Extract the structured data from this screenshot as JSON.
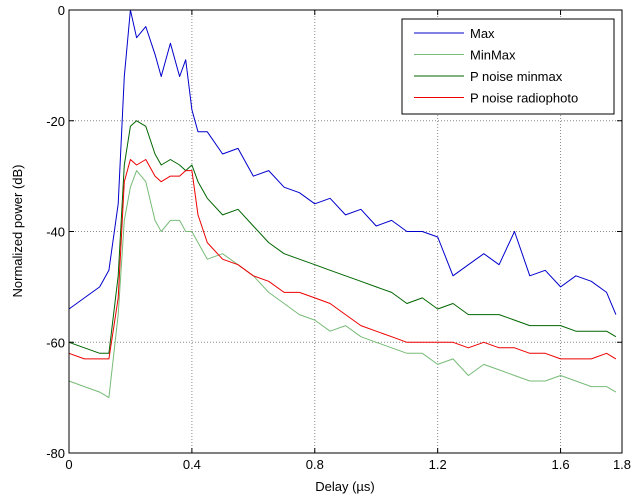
{
  "chart_data": {
    "type": "line",
    "title": "",
    "xlabel": "Delay (µs)",
    "ylabel": "Normalized power (dB)",
    "xlim": [
      0,
      1.8
    ],
    "ylim": [
      -80,
      0
    ],
    "xticks": [
      0,
      0.4,
      0.8,
      1.2,
      1.6,
      1.8
    ],
    "xtick_labels": [
      "0",
      "0.4",
      "0.8",
      "1.2",
      "1.6",
      "1.8"
    ],
    "yticks": [
      0,
      -20,
      -40,
      -60,
      -80
    ],
    "ytick_labels": [
      "0",
      "-20",
      "-40",
      "-60",
      "-80"
    ],
    "grid": true,
    "legend_position": "top-right",
    "x": [
      0,
      0.05,
      0.1,
      0.13,
      0.16,
      0.18,
      0.2,
      0.22,
      0.25,
      0.28,
      0.3,
      0.33,
      0.36,
      0.38,
      0.4,
      0.42,
      0.45,
      0.5,
      0.55,
      0.6,
      0.65,
      0.7,
      0.75,
      0.8,
      0.85,
      0.9,
      0.95,
      1.0,
      1.05,
      1.1,
      1.15,
      1.2,
      1.25,
      1.3,
      1.35,
      1.4,
      1.45,
      1.5,
      1.55,
      1.6,
      1.65,
      1.7,
      1.75,
      1.78
    ],
    "series": [
      {
        "name": "Max",
        "color": "#0000cc",
        "values": [
          -54,
          -52,
          -50,
          -47,
          -35,
          -12,
          0,
          -5,
          -3,
          -8,
          -12,
          -6,
          -12,
          -9,
          -18,
          -22,
          -22,
          -26,
          -25,
          -30,
          -29,
          -32,
          -33,
          -35,
          -34,
          -37,
          -36,
          -39,
          -38,
          -40,
          -40,
          -41,
          -48,
          -46,
          -44,
          -46,
          -40,
          -48,
          -47,
          -50,
          -48,
          -49,
          -51,
          -55
        ]
      },
      {
        "name": "MinMax",
        "color": "#77bb77",
        "values": [
          -67,
          -68,
          -69,
          -70,
          -55,
          -38,
          -32,
          -29,
          -31,
          -38,
          -40,
          -38,
          -38,
          -40,
          -40,
          -42,
          -45,
          -44,
          -46,
          -48,
          -51,
          -53,
          -55,
          -56,
          -58,
          -57,
          -59,
          -60,
          -61,
          -62,
          -62,
          -64,
          -63,
          -66,
          -64,
          -65,
          -66,
          -67,
          -67,
          -66,
          -67,
          -68,
          -68,
          -69
        ]
      },
      {
        "name": "P noise minmax",
        "color": "#006600",
        "values": [
          -60,
          -61,
          -62,
          -62,
          -48,
          -28,
          -21,
          -20,
          -21,
          -26,
          -28,
          -27,
          -28,
          -29,
          -28,
          -31,
          -34,
          -37,
          -36,
          -39,
          -42,
          -44,
          -45,
          -46,
          -47,
          -48,
          -49,
          -50,
          -51,
          -53,
          -52,
          -54,
          -53,
          -55,
          -55,
          -55,
          -56,
          -57,
          -57,
          -57,
          -58,
          -58,
          -58,
          -59
        ]
      },
      {
        "name": "P noise radiophoto",
        "color": "#ee0000",
        "values": [
          -62,
          -63,
          -63,
          -63,
          -52,
          -31,
          -27,
          -28,
          -27,
          -30,
          -31,
          -30,
          -30,
          -29,
          -29,
          -37,
          -42,
          -45,
          -46,
          -48,
          -49,
          -51,
          -51,
          -52,
          -53,
          -55,
          -57,
          -58,
          -59,
          -60,
          -60,
          -60,
          -60,
          -61,
          -60,
          -61,
          -61,
          -62,
          -62,
          -63,
          -63,
          -63,
          -62,
          -63
        ]
      }
    ]
  }
}
